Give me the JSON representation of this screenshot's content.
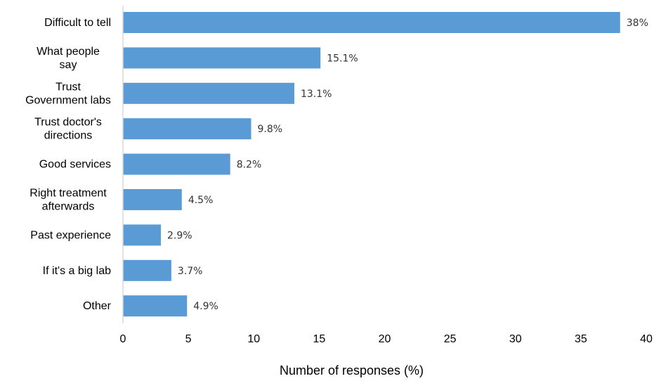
{
  "chart_data": {
    "type": "bar",
    "orientation": "horizontal",
    "categories": [
      [
        "Difficult to tell"
      ],
      [
        "What people",
        "say"
      ],
      [
        "Trust",
        "Government labs"
      ],
      [
        "Trust doctor's",
        "directions"
      ],
      [
        "Good services"
      ],
      [
        "Right treatment",
        "afterwards"
      ],
      [
        "Past experience"
      ],
      [
        "If it's a big lab"
      ],
      [
        "Other"
      ]
    ],
    "values": [
      38,
      15.1,
      13.1,
      9.8,
      8.2,
      4.5,
      2.9,
      3.7,
      4.9
    ],
    "value_labels": [
      "38%",
      "15.1%",
      "13.1%",
      "9.8%",
      "8.2%",
      "4.5%",
      "2.9%",
      "3.7%",
      "4.9%"
    ],
    "xlabel": "Number of responses (%)",
    "xlim": [
      0,
      40
    ],
    "xticks": [
      0,
      5,
      10,
      15,
      20,
      25,
      30,
      35,
      40
    ],
    "grid": false,
    "bar_color": "#5b9bd5",
    "axis_color": "#d9d9d9"
  }
}
